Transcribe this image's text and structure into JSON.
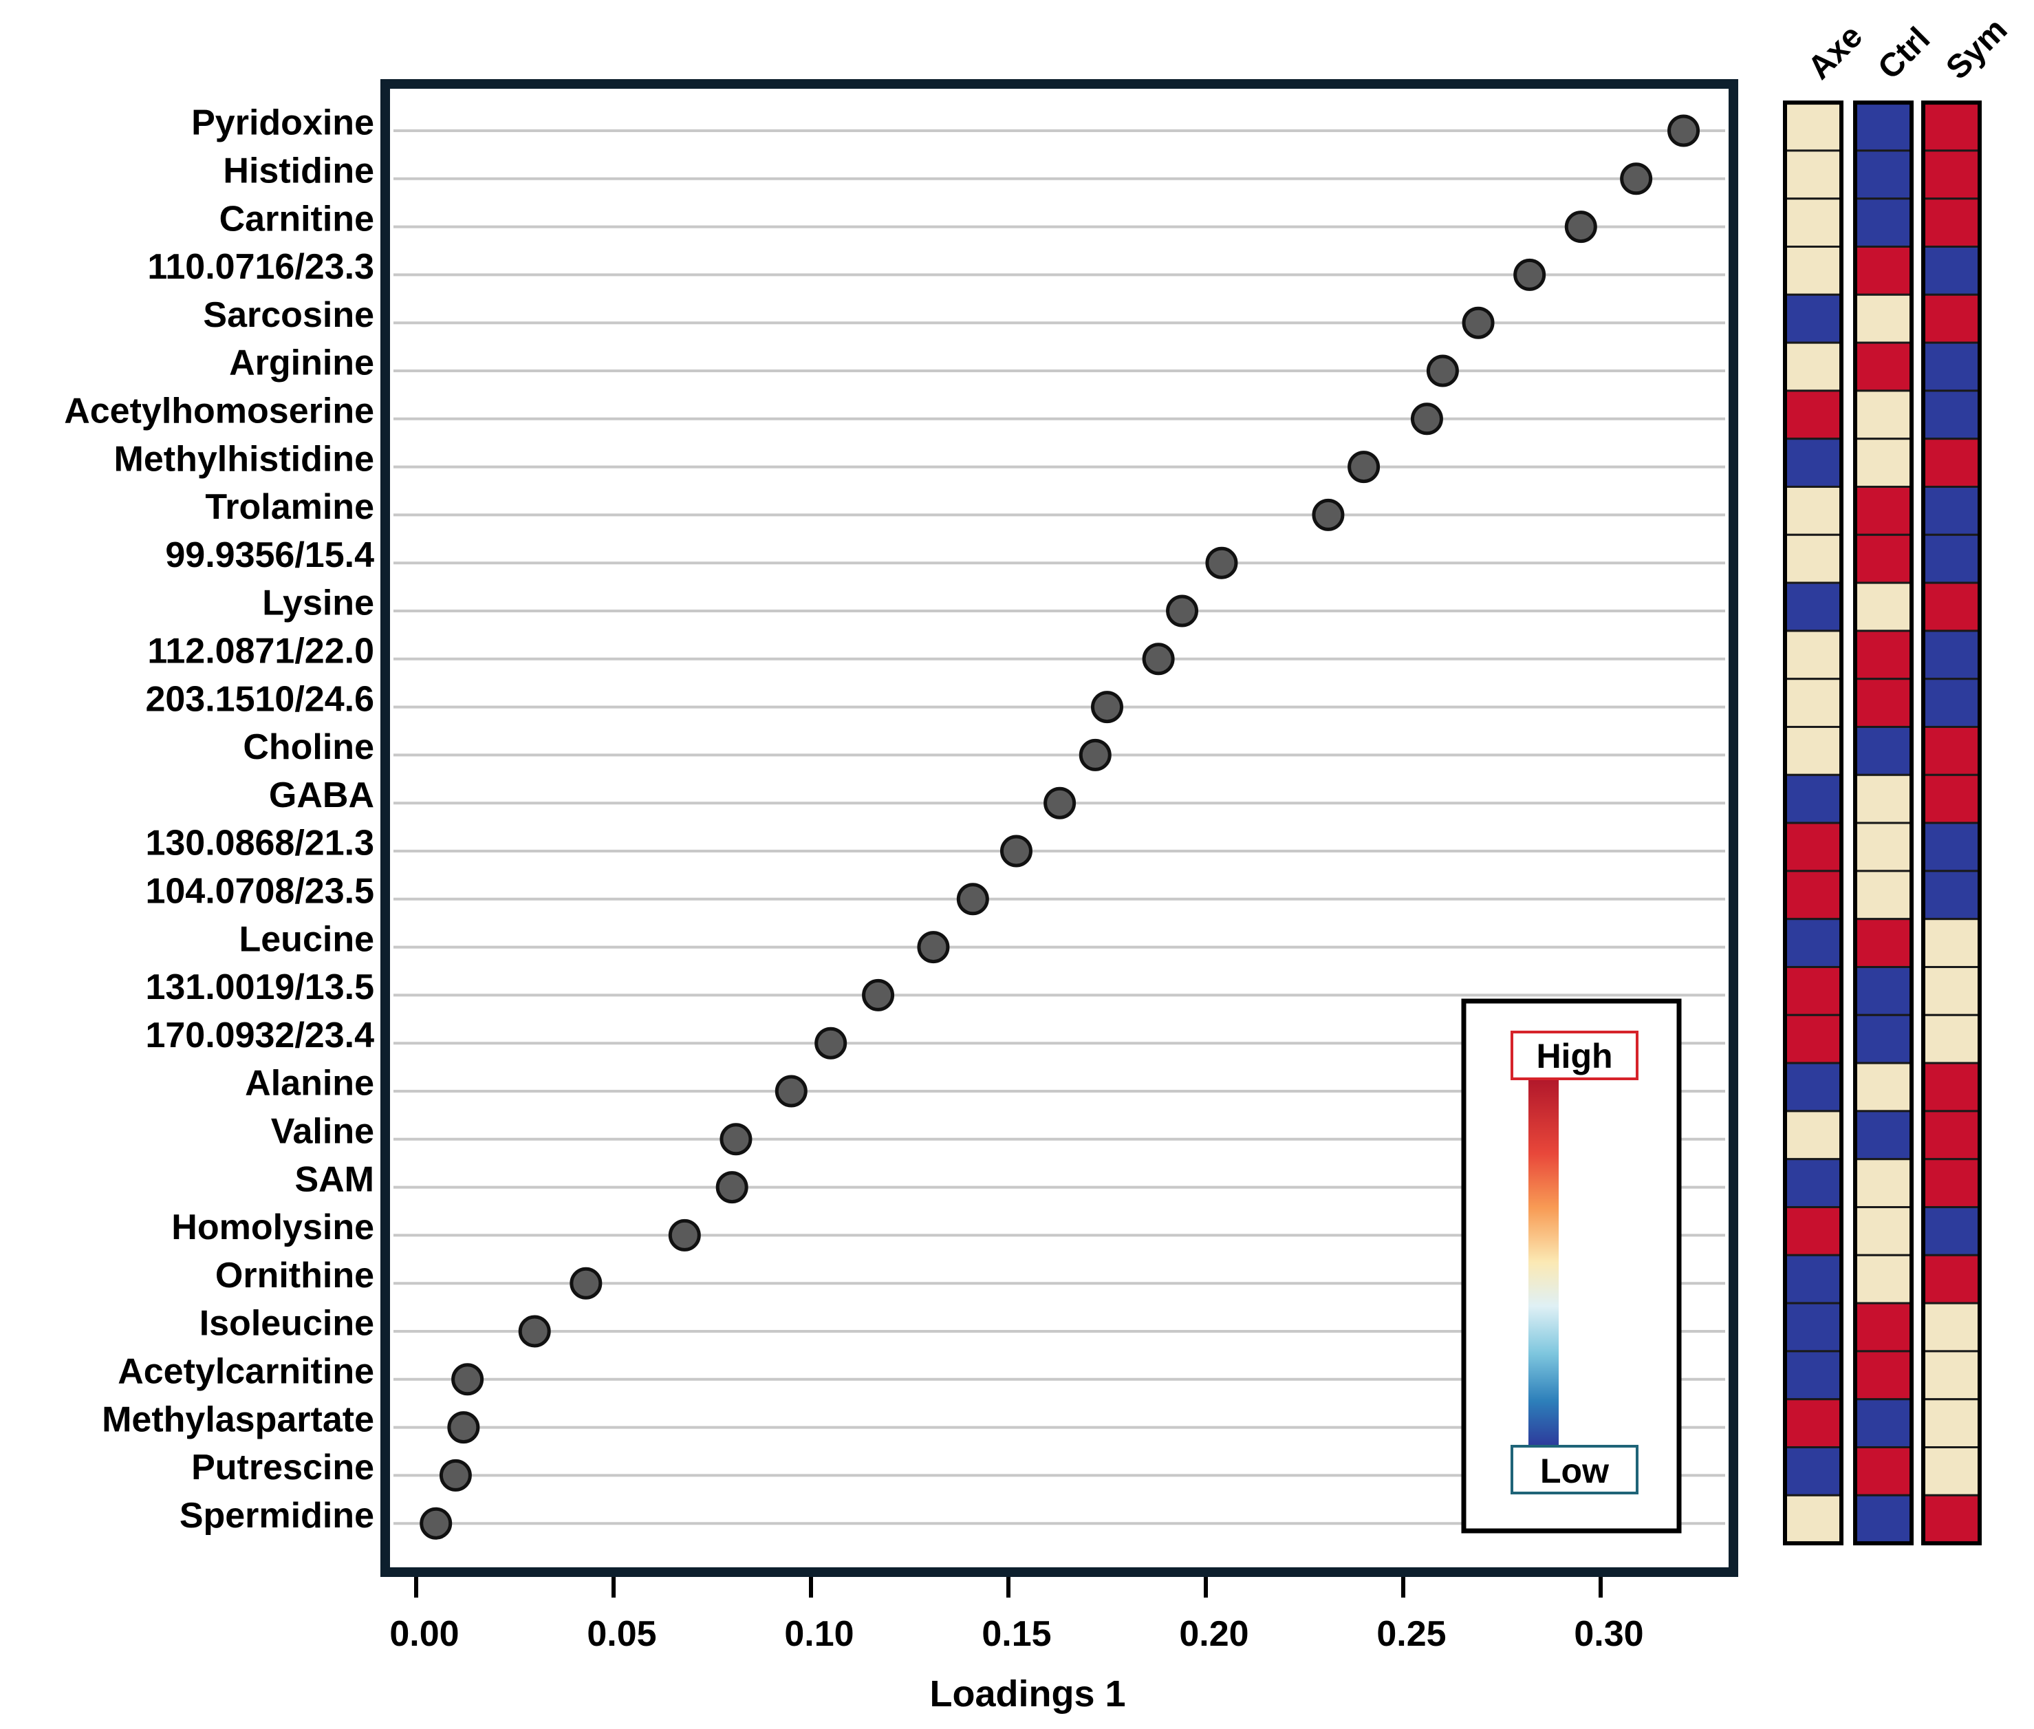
{
  "chart_data": {
    "type": "scatter",
    "subtype": "dot-plot with group heatmap",
    "xlabel": "Loadings 1",
    "xlim": [
      -0.005,
      0.335
    ],
    "xticks": [
      0.0,
      0.05,
      0.1,
      0.15,
      0.2,
      0.25,
      0.3
    ],
    "xtick_labels": [
      "0.00",
      "0.05",
      "0.10",
      "0.15",
      "0.20",
      "0.25",
      "0.30"
    ],
    "metabolites": [
      "Pyridoxine",
      "Histidine",
      "Carnitine",
      "110.0716/23.3",
      "Sarcosine",
      "Arginine",
      "Acetylhomoserine",
      "Methylhistidine",
      "Trolamine",
      "99.9356/15.4",
      "Lysine",
      "112.0871/22.0",
      "203.1510/24.6",
      "Choline",
      "GABA",
      "130.0868/21.3",
      "104.0708/23.5",
      "Leucine",
      "131.0019/13.5",
      "170.0932/23.4",
      "Alanine",
      "Valine",
      "SAM",
      "Homolysine",
      "Ornithine",
      "Isoleucine",
      "Acetylcarnitine",
      "Methylaspartate",
      "Putrescine",
      "Spermidine"
    ],
    "loadings": [
      0.321,
      0.309,
      0.295,
      0.282,
      0.269,
      0.26,
      0.256,
      0.24,
      0.231,
      0.204,
      0.194,
      0.188,
      0.175,
      0.172,
      0.163,
      0.152,
      0.141,
      0.131,
      0.117,
      0.105,
      0.095,
      0.081,
      0.08,
      0.068,
      0.043,
      0.03,
      0.013,
      0.012,
      0.01,
      0.005
    ],
    "heatmap": {
      "groups": [
        "Axe",
        "Ctrl",
        "Sym"
      ],
      "levels": {
        "high": "H",
        "mid": "M",
        "low": "L"
      },
      "values": [
        [
          "M",
          "L",
          "H"
        ],
        [
          "M",
          "L",
          "H"
        ],
        [
          "M",
          "L",
          "H"
        ],
        [
          "M",
          "H",
          "L"
        ],
        [
          "L",
          "M",
          "H"
        ],
        [
          "M",
          "H",
          "L"
        ],
        [
          "H",
          "M",
          "L"
        ],
        [
          "L",
          "M",
          "H"
        ],
        [
          "M",
          "H",
          "L"
        ],
        [
          "M",
          "H",
          "L"
        ],
        [
          "L",
          "M",
          "H"
        ],
        [
          "M",
          "H",
          "L"
        ],
        [
          "M",
          "H",
          "L"
        ],
        [
          "M",
          "L",
          "H"
        ],
        [
          "L",
          "M",
          "H"
        ],
        [
          "H",
          "M",
          "L"
        ],
        [
          "H",
          "M",
          "L"
        ],
        [
          "L",
          "H",
          "M"
        ],
        [
          "H",
          "L",
          "M"
        ],
        [
          "H",
          "L",
          "M"
        ],
        [
          "L",
          "M",
          "H"
        ],
        [
          "M",
          "L",
          "H"
        ],
        [
          "L",
          "M",
          "H"
        ],
        [
          "H",
          "M",
          "L"
        ],
        [
          "L",
          "M",
          "H"
        ],
        [
          "L",
          "H",
          "M"
        ],
        [
          "L",
          "H",
          "M"
        ],
        [
          "H",
          "L",
          "M"
        ],
        [
          "L",
          "H",
          "M"
        ],
        [
          "M",
          "L",
          "H"
        ]
      ]
    },
    "legend": {
      "high_label": "High",
      "low_label": "Low",
      "placement": "bottom-right"
    }
  },
  "colors": {
    "high": "#c8102e",
    "mid": "#f2e6c4",
    "low": "#2d3c9c",
    "dot_fill": "#5a5a5a",
    "frame": "#0d1f2d",
    "gridline": "#c8c8c8",
    "legend_high_border": "#d6232a",
    "legend_low_border": "#1f6478"
  }
}
